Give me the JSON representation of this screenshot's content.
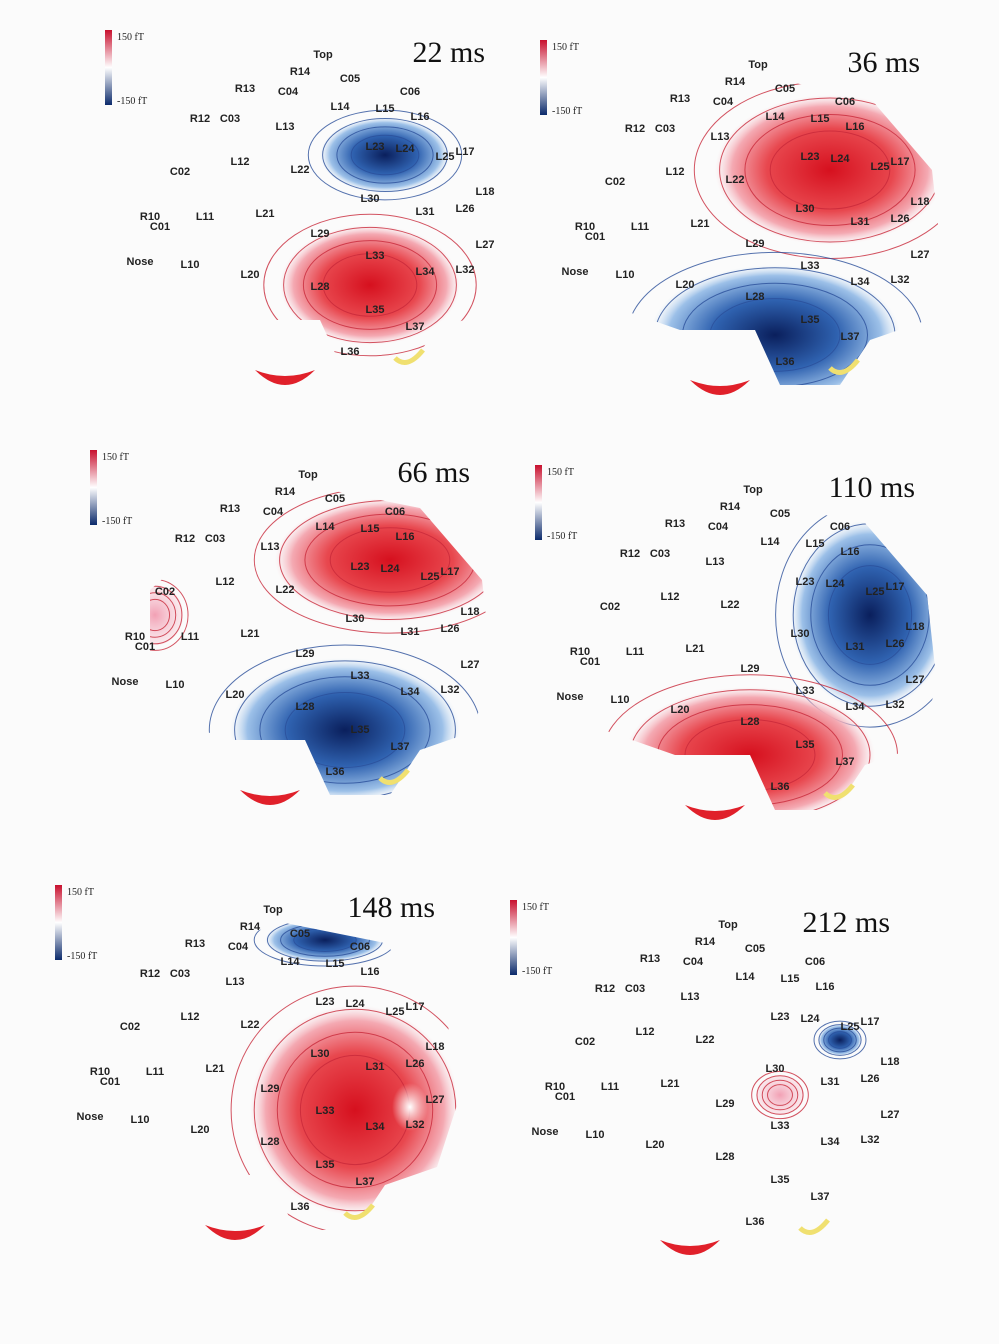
{
  "panels": [
    {
      "title": "22 ms",
      "colorbar": {
        "max": "150 fT",
        "min": "-150 fT"
      }
    },
    {
      "title": "36 ms",
      "colorbar": {
        "max": "150 fT",
        "min": "-150 fT"
      }
    },
    {
      "title": "66 ms",
      "colorbar": {
        "max": "150 fT",
        "min": "-150 fT"
      }
    },
    {
      "title": "110 ms",
      "colorbar": {
        "max": "150 fT",
        "min": "-150 fT"
      }
    },
    {
      "title": "148 ms",
      "colorbar": {
        "max": "150 fT",
        "min": "-150 fT"
      }
    },
    {
      "title": "212 ms",
      "colorbar": {
        "max": "150 fT",
        "min": "-150 fT"
      }
    }
  ],
  "sensors": [
    "Top",
    "R14",
    "C05",
    "C06",
    "R13",
    "C04",
    "R12",
    "C03",
    "L13",
    "L14",
    "L15",
    "L16",
    "L17",
    "L12",
    "L23",
    "L24",
    "L25",
    "C02",
    "L22",
    "L30",
    "L31",
    "L26",
    "L18",
    "R10",
    "C01",
    "L11",
    "L21",
    "L29",
    "L27",
    "Nose",
    "L10",
    "L20",
    "L28",
    "L33",
    "L34",
    "L32",
    "L35",
    "L37",
    "L36"
  ]
}
